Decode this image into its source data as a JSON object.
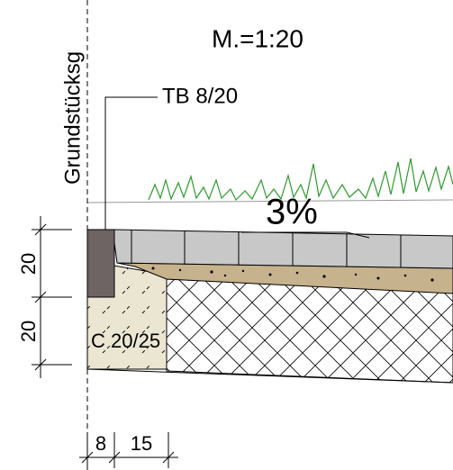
{
  "property_line_label": "Grundstücksg",
  "scale": "M.=1:20",
  "curb_label": "TB 8/20",
  "slope": "3%",
  "dimensions": {
    "vertical": [
      "20",
      "20"
    ],
    "horizontal": [
      "8",
      "15"
    ]
  },
  "foundation_label": "C 20/25"
}
